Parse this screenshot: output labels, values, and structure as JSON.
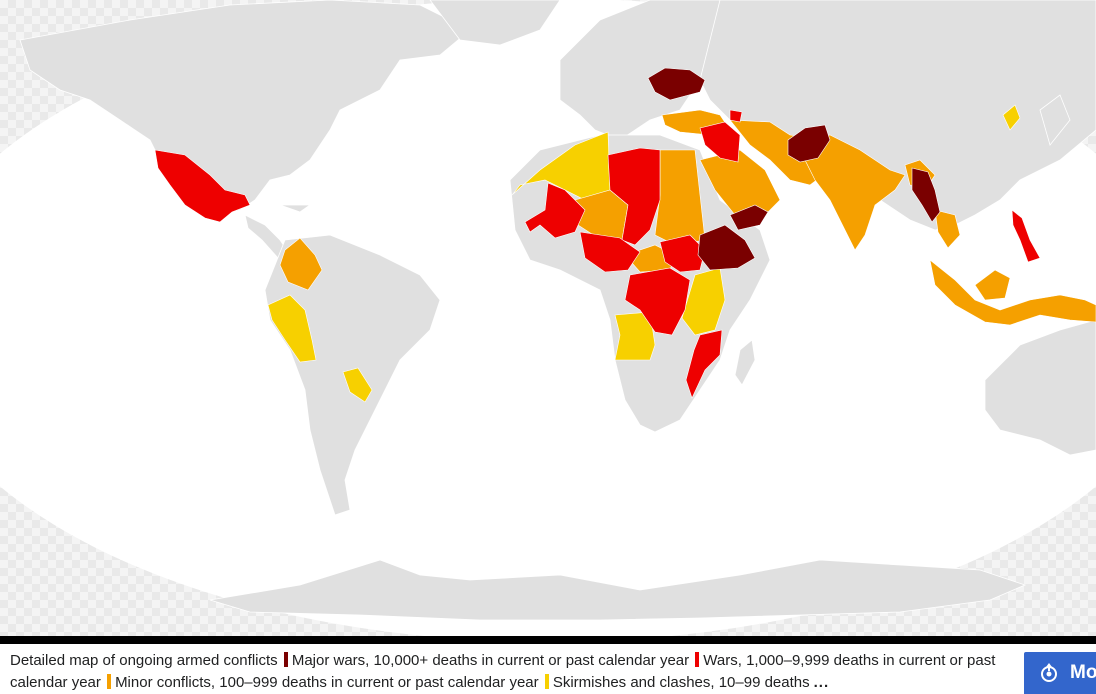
{
  "legend": {
    "colors": {
      "major_wars": "#7a0000",
      "wars": "#ee0000",
      "minor_conflicts": "#f5a000",
      "skirmishes": "#f7d000",
      "no_conflict": "#e0e0e0"
    }
  },
  "caption": {
    "intro": "Detailed map of ongoing armed conflicts",
    "major_wars": "Major wars, 10,000+ deaths in current or past calendar year",
    "wars": "Wars, 1,000–9,999 deaths in current or past calendar year",
    "minor_conflicts": "Minor conflicts, 100–999 deaths in current or past calendar year",
    "skirmishes": "Skirmishes and clashes, 10–99 deaths",
    "more": "..."
  },
  "more_button": {
    "label": "Mo",
    "icon": "wikimedia-commons-icon"
  }
}
